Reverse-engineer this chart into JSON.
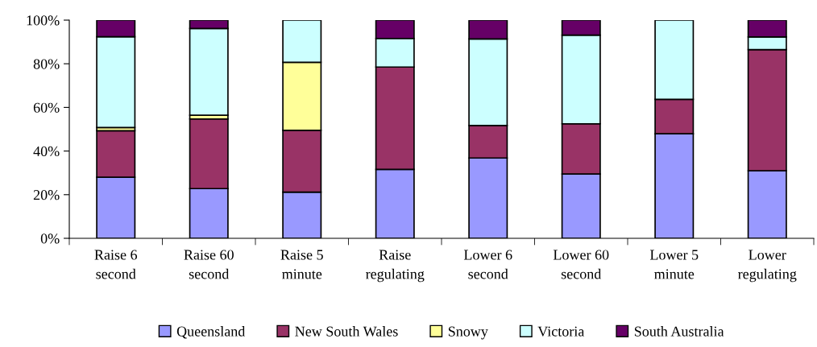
{
  "chart_data": {
    "type": "bar",
    "stacked": true,
    "categories": [
      "Raise 6\nsecond",
      "Raise 60\nsecond",
      "Raise 5\nminute",
      "Raise\nregulating",
      "Lower 6\nsecond",
      "Lower 60\nsecond",
      "Lower 5\nminute",
      "Lower\nregulating"
    ],
    "series": [
      {
        "name": "Queensland",
        "color": "#9999ff",
        "values": [
          28,
          22.8,
          21.2,
          31.6,
          36.8,
          29.5,
          47.9,
          31
        ]
      },
      {
        "name": "New South Wales",
        "color": "#993366",
        "values": [
          21.3,
          31.9,
          28.3,
          46.9,
          14.9,
          23,
          15.8,
          55.5
        ]
      },
      {
        "name": "Snowy",
        "color": "#ffff99",
        "values": [
          1.5,
          1.7,
          31.2,
          null,
          null,
          null,
          null,
          null
        ]
      },
      {
        "name": "Victoria",
        "color": "#ccffff",
        "values": [
          41.6,
          39.8,
          19.3,
          13.1,
          39.7,
          40.6,
          36.3,
          5.8
        ]
      },
      {
        "name": "South Australia",
        "color": "#660066",
        "values": [
          7.6,
          3.8,
          null,
          8.4,
          8.6,
          6.9,
          null,
          7.7
        ]
      }
    ],
    "ylim": [
      0,
      100
    ],
    "yticks": [
      {
        "value": 0,
        "label": "0%"
      },
      {
        "value": 20,
        "label": "20%"
      },
      {
        "value": 40,
        "label": "40%"
      },
      {
        "value": 60,
        "label": "60%"
      },
      {
        "value": 80,
        "label": "80%"
      },
      {
        "value": 100,
        "label": "100%"
      }
    ],
    "grid": false,
    "legend": "bottom"
  }
}
